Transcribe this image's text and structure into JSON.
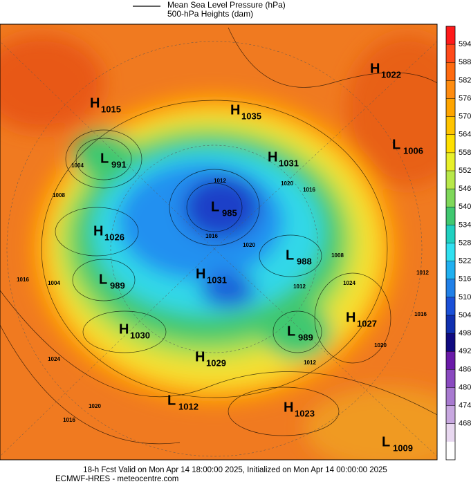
{
  "legend": {
    "isobar_label": "Mean Sea Level Pressure (hPa)",
    "height_label": "500-hPa Heights (dam)"
  },
  "centers": [
    {
      "type": "H",
      "value": 1015
    },
    {
      "type": "H",
      "value": 1035
    },
    {
      "type": "H",
      "value": 1022
    },
    {
      "type": "L",
      "value": 1006
    },
    {
      "type": "L",
      "value": 991
    },
    {
      "type": "H",
      "value": 1031
    },
    {
      "type": "L",
      "value": 985
    },
    {
      "type": "H",
      "value": 1026
    },
    {
      "type": "L",
      "value": 988
    },
    {
      "type": "L",
      "value": 989
    },
    {
      "type": "H",
      "value": 1031
    },
    {
      "type": "H",
      "value": 1027
    },
    {
      "type": "H",
      "value": 1030
    },
    {
      "type": "L",
      "value": 989
    },
    {
      "type": "H",
      "value": 1029
    },
    {
      "type": "L",
      "value": 1012
    },
    {
      "type": "H",
      "value": 1023
    },
    {
      "type": "L",
      "value": 1009
    }
  ],
  "contour_labels": [
    1012,
    1020,
    1016,
    1008,
    1004,
    1016,
    1004,
    1024,
    1012,
    1012,
    1020,
    1016,
    1024,
    1020,
    1016,
    1012,
    1016,
    1020,
    1008
  ],
  "colorbar": {
    "ticks": [
      594,
      588,
      582,
      576,
      570,
      564,
      558,
      552,
      546,
      540,
      534,
      528,
      522,
      516,
      510,
      504,
      498,
      492,
      486,
      480,
      474,
      468
    ],
    "colors": [
      "#ff1a1a",
      "#ff4a1a",
      "#ff6a10",
      "#ff8c10",
      "#ffa500",
      "#ffc400",
      "#ffe000",
      "#e8f02a",
      "#b8e84a",
      "#7fd85a",
      "#40c870",
      "#20d0c0",
      "#30e0f0",
      "#20b0f0",
      "#2080e8",
      "#1a50d8",
      "#1030b0",
      "#100a80",
      "#6a1aa8",
      "#8a4ac0",
      "#a87ad0",
      "#c8a8e0",
      "#e8d8f0",
      "#ffffff"
    ]
  },
  "footer": {
    "line1": "18-h Fcst Valid on Mon Apr 14 18:00:00 2025, Initialized on Mon Apr 14 00:00:00 2025",
    "line2": "ECMWF-HRES  - meteocentre.com"
  }
}
